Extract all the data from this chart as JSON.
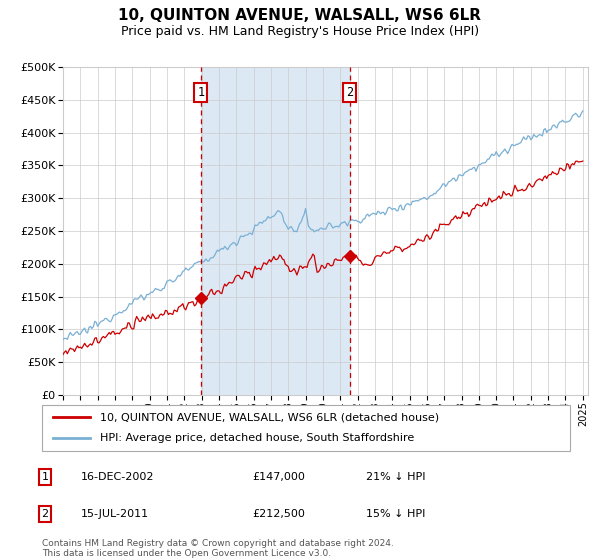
{
  "title": "10, QUINTON AVENUE, WALSALL, WS6 6LR",
  "subtitle": "Price paid vs. HM Land Registry's House Price Index (HPI)",
  "legend_line1": "10, QUINTON AVENUE, WALSALL, WS6 6LR (detached house)",
  "legend_line2": "HPI: Average price, detached house, South Staffordshire",
  "annotation1_date": "16-DEC-2002",
  "annotation1_price": "£147,000",
  "annotation1_pct": "21% ↓ HPI",
  "annotation2_date": "15-JUL-2011",
  "annotation2_price": "£212,500",
  "annotation2_pct": "15% ↓ HPI",
  "footer": "Contains HM Land Registry data © Crown copyright and database right 2024.\nThis data is licensed under the Open Government Licence v3.0.",
  "red_color": "#cc0000",
  "blue_color": "#7ab0d4",
  "bg_color": "#dce9f5",
  "vline_color": "#cc0000",
  "grid_color": "#cccccc",
  "sale1_year": 2002.96,
  "sale1_value": 147000,
  "sale2_year": 2011.54,
  "sale2_value": 212500,
  "ylim_min": 0,
  "ylim_max": 500000
}
